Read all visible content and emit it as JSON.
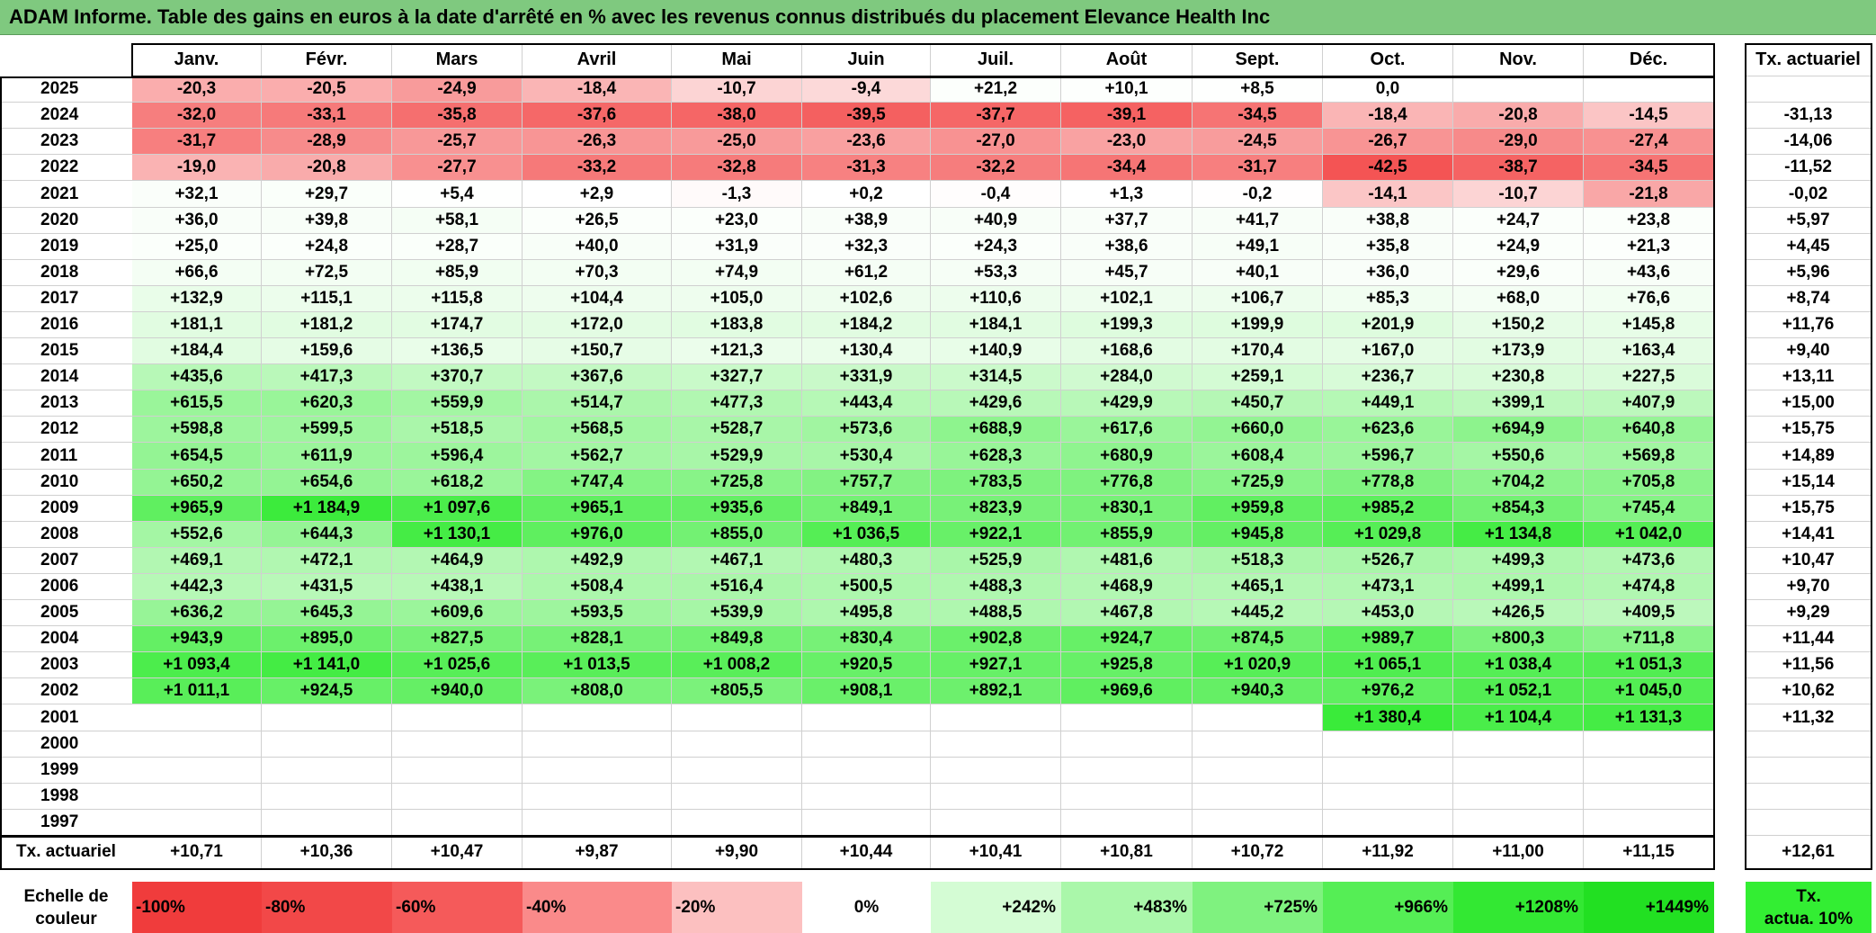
{
  "title": "ADAM Informe. Table des gains en euros à la date d'arrêté en % avec les revenus connus distribués du placement Elevance Health Inc",
  "months": [
    "Janv.",
    "Févr.",
    "Mars",
    "Avril",
    "Mai",
    "Juin",
    "Juil.",
    "Août",
    "Sept.",
    "Oct.",
    "Nov.",
    "Déc."
  ],
  "actuarial_header": "Tx. actuariel",
  "rows": [
    {
      "year": "2025",
      "values": [
        "-20,3",
        "-20,5",
        "-24,9",
        "-18,4",
        "-10,7",
        "-9,4",
        "+21,2",
        "+10,1",
        "+8,5",
        "0,0",
        "",
        ""
      ],
      "actuarial": ""
    },
    {
      "year": "2024",
      "values": [
        "-32,0",
        "-33,1",
        "-35,8",
        "-37,6",
        "-38,0",
        "-39,5",
        "-37,7",
        "-39,1",
        "-34,5",
        "-18,4",
        "-20,8",
        "-14,5"
      ],
      "actuarial": "-31,13"
    },
    {
      "year": "2023",
      "values": [
        "-31,7",
        "-28,9",
        "-25,7",
        "-26,3",
        "-25,0",
        "-23,6",
        "-27,0",
        "-23,0",
        "-24,5",
        "-26,7",
        "-29,0",
        "-27,4"
      ],
      "actuarial": "-14,06"
    },
    {
      "year": "2022",
      "values": [
        "-19,0",
        "-20,8",
        "-27,7",
        "-33,2",
        "-32,8",
        "-31,3",
        "-32,2",
        "-34,4",
        "-31,7",
        "-42,5",
        "-38,7",
        "-34,5"
      ],
      "actuarial": "-11,52"
    },
    {
      "year": "2021",
      "values": [
        "+32,1",
        "+29,7",
        "+5,4",
        "+2,9",
        "-1,3",
        "+0,2",
        "-0,4",
        "+1,3",
        "-0,2",
        "-14,1",
        "-10,7",
        "-21,8"
      ],
      "actuarial": "-0,02"
    },
    {
      "year": "2020",
      "values": [
        "+36,0",
        "+39,8",
        "+58,1",
        "+26,5",
        "+23,0",
        "+38,9",
        "+40,9",
        "+37,7",
        "+41,7",
        "+38,8",
        "+24,7",
        "+23,8"
      ],
      "actuarial": "+5,97"
    },
    {
      "year": "2019",
      "values": [
        "+25,0",
        "+24,8",
        "+28,7",
        "+40,0",
        "+31,9",
        "+32,3",
        "+24,3",
        "+38,6",
        "+49,1",
        "+35,8",
        "+24,9",
        "+21,3"
      ],
      "actuarial": "+4,45"
    },
    {
      "year": "2018",
      "values": [
        "+66,6",
        "+72,5",
        "+85,9",
        "+70,3",
        "+74,9",
        "+61,2",
        "+53,3",
        "+45,7",
        "+40,1",
        "+36,0",
        "+29,6",
        "+43,6"
      ],
      "actuarial": "+5,96"
    },
    {
      "year": "2017",
      "values": [
        "+132,9",
        "+115,1",
        "+115,8",
        "+104,4",
        "+105,0",
        "+102,6",
        "+110,6",
        "+102,1",
        "+106,7",
        "+85,3",
        "+68,0",
        "+76,6"
      ],
      "actuarial": "+8,74"
    },
    {
      "year": "2016",
      "values": [
        "+181,1",
        "+181,2",
        "+174,7",
        "+172,0",
        "+183,8",
        "+184,2",
        "+184,1",
        "+199,3",
        "+199,9",
        "+201,9",
        "+150,2",
        "+145,8"
      ],
      "actuarial": "+11,76"
    },
    {
      "year": "2015",
      "values": [
        "+184,4",
        "+159,6",
        "+136,5",
        "+150,7",
        "+121,3",
        "+130,4",
        "+140,9",
        "+168,6",
        "+170,4",
        "+167,0",
        "+173,9",
        "+163,4"
      ],
      "actuarial": "+9,40"
    },
    {
      "year": "2014",
      "values": [
        "+435,6",
        "+417,3",
        "+370,7",
        "+367,6",
        "+327,7",
        "+331,9",
        "+314,5",
        "+284,0",
        "+259,1",
        "+236,7",
        "+230,8",
        "+227,5"
      ],
      "actuarial": "+13,11"
    },
    {
      "year": "2013",
      "values": [
        "+615,5",
        "+620,3",
        "+559,9",
        "+514,7",
        "+477,3",
        "+443,4",
        "+429,6",
        "+429,9",
        "+450,7",
        "+449,1",
        "+399,1",
        "+407,9"
      ],
      "actuarial": "+15,00"
    },
    {
      "year": "2012",
      "values": [
        "+598,8",
        "+599,5",
        "+518,5",
        "+568,5",
        "+528,7",
        "+573,6",
        "+688,9",
        "+617,6",
        "+660,0",
        "+623,6",
        "+694,9",
        "+640,8"
      ],
      "actuarial": "+15,75"
    },
    {
      "year": "2011",
      "values": [
        "+654,5",
        "+611,9",
        "+596,4",
        "+562,7",
        "+529,9",
        "+530,4",
        "+628,3",
        "+680,9",
        "+608,4",
        "+596,7",
        "+550,6",
        "+569,8"
      ],
      "actuarial": "+14,89"
    },
    {
      "year": "2010",
      "values": [
        "+650,2",
        "+654,6",
        "+618,2",
        "+747,4",
        "+725,8",
        "+757,7",
        "+783,5",
        "+776,8",
        "+725,9",
        "+778,8",
        "+704,2",
        "+705,8"
      ],
      "actuarial": "+15,14"
    },
    {
      "year": "2009",
      "values": [
        "+965,9",
        "+1 184,9",
        "+1 097,6",
        "+965,1",
        "+935,6",
        "+849,1",
        "+823,9",
        "+830,1",
        "+959,8",
        "+985,2",
        "+854,3",
        "+745,4"
      ],
      "actuarial": "+15,75"
    },
    {
      "year": "2008",
      "values": [
        "+552,6",
        "+644,3",
        "+1 130,1",
        "+976,0",
        "+855,0",
        "+1 036,5",
        "+922,1",
        "+855,9",
        "+945,8",
        "+1 029,8",
        "+1 134,8",
        "+1 042,0"
      ],
      "actuarial": "+14,41"
    },
    {
      "year": "2007",
      "values": [
        "+469,1",
        "+472,1",
        "+464,9",
        "+492,9",
        "+467,1",
        "+480,3",
        "+525,9",
        "+481,6",
        "+518,3",
        "+526,7",
        "+499,3",
        "+473,6"
      ],
      "actuarial": "+10,47"
    },
    {
      "year": "2006",
      "values": [
        "+442,3",
        "+431,5",
        "+438,1",
        "+508,4",
        "+516,4",
        "+500,5",
        "+488,3",
        "+468,9",
        "+465,1",
        "+473,1",
        "+499,1",
        "+474,8"
      ],
      "actuarial": "+9,70"
    },
    {
      "year": "2005",
      "values": [
        "+636,2",
        "+645,3",
        "+609,6",
        "+593,5",
        "+539,9",
        "+495,8",
        "+488,5",
        "+467,8",
        "+445,2",
        "+453,0",
        "+426,5",
        "+409,5"
      ],
      "actuarial": "+9,29"
    },
    {
      "year": "2004",
      "values": [
        "+943,9",
        "+895,0",
        "+827,5",
        "+828,1",
        "+849,8",
        "+830,4",
        "+902,8",
        "+924,7",
        "+874,5",
        "+989,7",
        "+800,3",
        "+711,8"
      ],
      "actuarial": "+11,44"
    },
    {
      "year": "2003",
      "values": [
        "+1 093,4",
        "+1 141,0",
        "+1 025,6",
        "+1 013,5",
        "+1 008,2",
        "+920,5",
        "+927,1",
        "+925,8",
        "+1 020,9",
        "+1 065,1",
        "+1 038,4",
        "+1 051,3"
      ],
      "actuarial": "+11,56"
    },
    {
      "year": "2002",
      "values": [
        "+1 011,1",
        "+924,5",
        "+940,0",
        "+808,0",
        "+805,5",
        "+908,1",
        "+892,1",
        "+969,6",
        "+940,3",
        "+976,2",
        "+1 052,1",
        "+1 045,0"
      ],
      "actuarial": "+10,62"
    },
    {
      "year": "2001",
      "values": [
        "",
        "",
        "",
        "",
        "",
        "",
        "",
        "",
        "",
        "+1 380,4",
        "+1 104,4",
        "+1 131,3"
      ],
      "actuarial": "+11,32"
    },
    {
      "year": "2000",
      "values": [
        "",
        "",
        "",
        "",
        "",
        "",
        "",
        "",
        "",
        "",
        "",
        ""
      ],
      "actuarial": ""
    },
    {
      "year": "1999",
      "values": [
        "",
        "",
        "",
        "",
        "",
        "",
        "",
        "",
        "",
        "",
        "",
        ""
      ],
      "actuarial": ""
    },
    {
      "year": "1998",
      "values": [
        "",
        "",
        "",
        "",
        "",
        "",
        "",
        "",
        "",
        "",
        "",
        ""
      ],
      "actuarial": ""
    },
    {
      "year": "1997",
      "values": [
        "",
        "",
        "",
        "",
        "",
        "",
        "",
        "",
        "",
        "",
        "",
        ""
      ],
      "actuarial": ""
    }
  ],
  "footer": {
    "label": "Tx. actuariel",
    "values": [
      "+10,71",
      "+10,36",
      "+10,47",
      "+9,87",
      "+9,90",
      "+10,44",
      "+10,41",
      "+10,81",
      "+10,72",
      "+11,92",
      "+11,00",
      "+11,15"
    ],
    "actuarial": "+12,61"
  },
  "legend": {
    "label_line1": "Echelle de",
    "label_line2": "couleur",
    "items": [
      {
        "label": "-100%",
        "color": "#f03c3c",
        "kind": "neg"
      },
      {
        "label": "-80%",
        "color": "#f24848",
        "kind": "neg"
      },
      {
        "label": "-60%",
        "color": "#f55a5a",
        "kind": "neg"
      },
      {
        "label": "-40%",
        "color": "#fa8a8a",
        "kind": "neg"
      },
      {
        "label": "-20%",
        "color": "#fcc0c0",
        "kind": "neg"
      },
      {
        "label": "0%",
        "color": "#ffffff",
        "kind": "zero"
      },
      {
        "label": "+242%",
        "color": "#d4fcd4",
        "kind": "pos"
      },
      {
        "label": "+483%",
        "color": "#aaf7aa",
        "kind": "pos"
      },
      {
        "label": "+725%",
        "color": "#7ff27f",
        "kind": "pos"
      },
      {
        "label": "+966%",
        "color": "#55ee55",
        "kind": "pos"
      },
      {
        "label": "+1208%",
        "color": "#33e833",
        "kind": "pos"
      },
      {
        "label": "+1449%",
        "color": "#22e022",
        "kind": "pos"
      }
    ],
    "actuarial_line1": "Tx.",
    "actuarial_line2": "actua. 10%"
  }
}
